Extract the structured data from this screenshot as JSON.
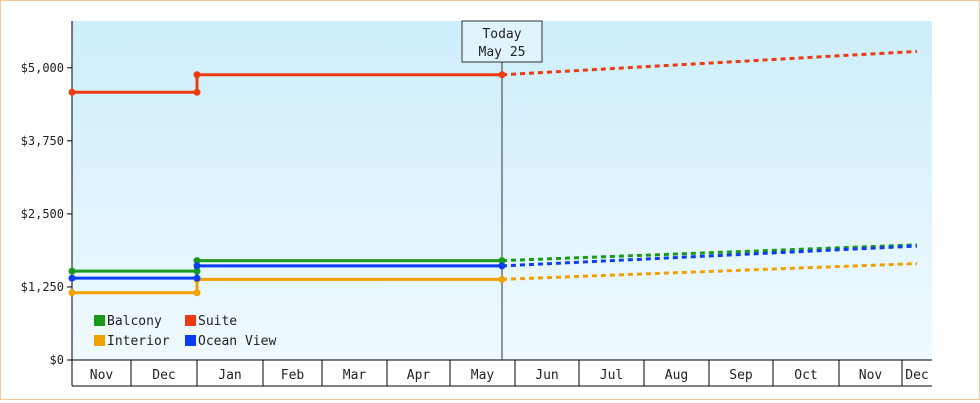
{
  "chart_data": {
    "type": "line",
    "today_label": [
      "Today",
      "May 25"
    ],
    "months": [
      "Nov",
      "Dec",
      "Jan",
      "Feb",
      "Mar",
      "Apr",
      "May",
      "Jun",
      "Jul",
      "Aug",
      "Sep",
      "Oct",
      "Nov",
      "Dec"
    ],
    "yticks": [
      {
        "value": 0,
        "label": "$0"
      },
      {
        "value": 1250,
        "label": "$1,250"
      },
      {
        "value": 2500,
        "label": "$2,500"
      },
      {
        "value": 3750,
        "label": "$3,750"
      },
      {
        "value": 5000,
        "label": "$5,000"
      }
    ],
    "ylim": [
      0,
      5800
    ],
    "grid": false,
    "legend_position": "bottom-left",
    "series": [
      {
        "name": "Balcony",
        "color": "#1a9a1a",
        "history": [
          [
            0,
            1520
          ],
          [
            2,
            1520
          ],
          [
            2,
            1700
          ],
          [
            6.8,
            1700
          ]
        ],
        "forecast": [
          [
            6.8,
            1700
          ],
          [
            13.5,
            1970
          ]
        ]
      },
      {
        "name": "Suite",
        "color": "#ee3a10",
        "history": [
          [
            0,
            4580
          ],
          [
            2,
            4580
          ],
          [
            2,
            4880
          ],
          [
            6.8,
            4880
          ]
        ],
        "forecast": [
          [
            6.8,
            4880
          ],
          [
            13.5,
            5280
          ]
        ]
      },
      {
        "name": "Interior",
        "color": "#f2a000",
        "history": [
          [
            0,
            1150
          ],
          [
            2,
            1150
          ],
          [
            2,
            1380
          ],
          [
            6.8,
            1380
          ]
        ],
        "forecast": [
          [
            6.8,
            1380
          ],
          [
            13.5,
            1650
          ]
        ]
      },
      {
        "name": "Ocean View",
        "color": "#0a3ef0",
        "history": [
          [
            0,
            1400
          ],
          [
            2,
            1400
          ],
          [
            2,
            1610
          ],
          [
            6.8,
            1610
          ]
        ],
        "forecast": [
          [
            6.8,
            1610
          ],
          [
            13.5,
            1950
          ]
        ]
      }
    ],
    "today_x": 6.8
  }
}
